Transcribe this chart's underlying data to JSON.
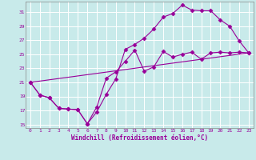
{
  "title": "",
  "xlabel": "Windchill (Refroidissement éolien,°C)",
  "ylabel": "",
  "bg_color": "#c8eaea",
  "grid_color": "#b0d0d0",
  "line_color": "#990099",
  "spine_color": "#888888",
  "xlim": [
    -0.5,
    23.5
  ],
  "ylim": [
    14.5,
    32.5
  ],
  "yticks": [
    15,
    17,
    19,
    21,
    23,
    25,
    27,
    29,
    31
  ],
  "xticks": [
    0,
    1,
    2,
    3,
    4,
    5,
    6,
    7,
    8,
    9,
    10,
    11,
    12,
    13,
    14,
    15,
    16,
    17,
    18,
    19,
    20,
    21,
    22,
    23
  ],
  "series1_x": [
    0,
    1,
    2,
    3,
    4,
    5,
    6,
    7,
    8,
    9,
    10,
    11,
    12,
    13,
    14,
    15,
    16,
    17,
    18,
    19,
    20,
    21,
    22,
    23
  ],
  "series1_y": [
    21.0,
    19.2,
    18.8,
    17.3,
    17.2,
    17.1,
    15.1,
    16.8,
    19.3,
    21.5,
    25.7,
    26.4,
    27.3,
    28.6,
    30.3,
    30.8,
    32.0,
    31.3,
    31.2,
    31.2,
    29.9,
    29.0,
    26.9,
    25.2
  ],
  "series2_x": [
    0,
    1,
    2,
    3,
    4,
    5,
    6,
    7,
    8,
    9,
    10,
    11,
    12,
    13,
    14,
    15,
    16,
    17,
    18,
    19,
    20,
    21,
    22,
    23
  ],
  "series2_y": [
    21.0,
    19.2,
    18.8,
    17.3,
    17.2,
    17.1,
    15.1,
    17.5,
    21.6,
    22.5,
    24.0,
    25.6,
    22.6,
    23.2,
    25.4,
    24.6,
    25.0,
    25.3,
    24.3,
    25.2,
    25.3,
    25.2,
    25.3,
    25.2
  ],
  "series3_x": [
    0,
    23
  ],
  "series3_y": [
    21.0,
    25.2
  ],
  "marker": "D",
  "markersize": 2.5,
  "linewidth": 0.8
}
